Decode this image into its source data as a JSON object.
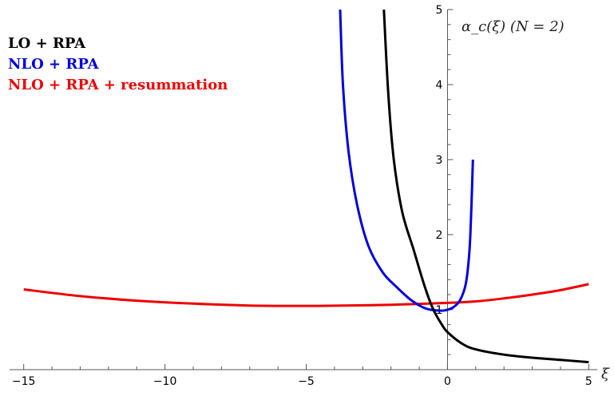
{
  "chart_data": {
    "type": "line",
    "title": "α_c(ξ)   (N = 2)",
    "xlabel": "ξ",
    "ylabel": "",
    "xlim": [
      -15.5,
      5.3
    ],
    "ylim": [
      0.2,
      5.0
    ],
    "x_ticks": [
      -15,
      -10,
      -5,
      0,
      5
    ],
    "x_tick_labels": [
      "−15",
      "−10",
      "−5",
      "0",
      "5"
    ],
    "y_ticks": [
      1,
      2,
      3,
      4,
      5
    ],
    "y_tick_labels": [
      "1",
      "2",
      "3",
      "4",
      "5"
    ],
    "grid": false,
    "legend_position": "top-left",
    "series": [
      {
        "name": "LO + RPA",
        "color": "#000000",
        "points": [
          [
            -2.25,
            5.0
          ],
          [
            -2.1,
            3.9
          ],
          [
            -1.9,
            3.0
          ],
          [
            -1.6,
            2.3
          ],
          [
            -1.2,
            1.8
          ],
          [
            -0.8,
            1.3
          ],
          [
            -0.5,
            1.0
          ],
          [
            -0.2,
            0.8
          ],
          [
            0.0,
            0.7
          ],
          [
            0.5,
            0.55
          ],
          [
            1.0,
            0.47
          ],
          [
            2.0,
            0.4
          ],
          [
            3.0,
            0.36
          ],
          [
            4.0,
            0.33
          ],
          [
            5.0,
            0.3
          ]
        ]
      },
      {
        "name": "NLO + RPA",
        "color": "#0000dd",
        "points": [
          [
            -3.8,
            5.0
          ],
          [
            -3.7,
            4.0
          ],
          [
            -3.5,
            3.1
          ],
          [
            -3.2,
            2.4
          ],
          [
            -2.8,
            1.85
          ],
          [
            -2.3,
            1.5
          ],
          [
            -1.8,
            1.3
          ],
          [
            -1.3,
            1.13
          ],
          [
            -0.8,
            1.02
          ],
          [
            -0.4,
            0.99
          ],
          [
            -0.1,
            0.99
          ],
          [
            0.2,
            1.03
          ],
          [
            0.45,
            1.13
          ],
          [
            0.65,
            1.35
          ],
          [
            0.78,
            1.8
          ],
          [
            0.85,
            2.4
          ],
          [
            0.9,
            3.0
          ]
        ]
      },
      {
        "name": "NLO + RPA + resummation",
        "color": "#ee0000",
        "points": [
          [
            -15.0,
            1.27
          ],
          [
            -13.0,
            1.18
          ],
          [
            -11.0,
            1.12
          ],
          [
            -9.0,
            1.08
          ],
          [
            -7.0,
            1.055
          ],
          [
            -5.5,
            1.05
          ],
          [
            -4.0,
            1.052
          ],
          [
            -2.0,
            1.065
          ],
          [
            0.0,
            1.09
          ],
          [
            1.0,
            1.11
          ],
          [
            2.0,
            1.15
          ],
          [
            3.0,
            1.2
          ],
          [
            4.0,
            1.26
          ],
          [
            5.0,
            1.34
          ]
        ]
      }
    ]
  }
}
